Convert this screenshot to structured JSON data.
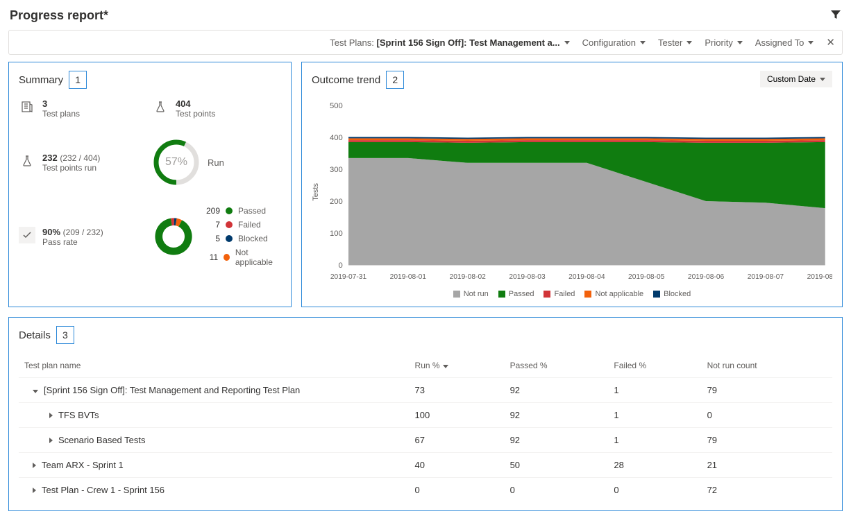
{
  "page_title": "Progress report*",
  "filter_bar": {
    "test_plans_label": "Test Plans:",
    "test_plans_value": "[Sprint 156 Sign Off]: Test Management a...",
    "items": [
      "Configuration",
      "Tester",
      "Priority",
      "Assigned To"
    ]
  },
  "summary": {
    "title": "Summary",
    "badge": "1",
    "test_plans": {
      "value": "3",
      "label": "Test plans"
    },
    "test_points": {
      "value": "404",
      "label": "Test points"
    },
    "test_points_run": {
      "value": "232",
      "sub": "(232 / 404)",
      "label": "Test points run"
    },
    "run_donut": {
      "pct_label": "57%",
      "pct": 57,
      "label": "Run",
      "fg": "#107c10",
      "bg": "#e1dfdd"
    },
    "pass_rate": {
      "value": "90%",
      "sub": "(209 / 232)",
      "label": "Pass rate"
    },
    "breakdown_donut": {
      "slices": [
        {
          "count": 209,
          "label": "Passed",
          "color": "#107c10"
        },
        {
          "count": 7,
          "label": "Failed",
          "color": "#d13438"
        },
        {
          "count": 5,
          "label": "Blocked",
          "color": "#003a6c"
        },
        {
          "count": 11,
          "label": "Not applicable",
          "color": "#f2610c"
        }
      ],
      "total": 232
    }
  },
  "trend": {
    "title": "Outcome trend",
    "badge": "2",
    "custom_date_label": "Custom Date",
    "y_label": "Tests",
    "y_ticks": [
      0,
      100,
      200,
      300,
      400,
      500
    ],
    "x_labels": [
      "2019-07-31",
      "2019-08-01",
      "2019-08-02",
      "2019-08-03",
      "2019-08-04",
      "2019-08-05",
      "2019-08-06",
      "2019-08-07",
      "2019-08-08"
    ],
    "series": [
      {
        "name": "Not run",
        "color": "#a6a6a6",
        "values": [
          335,
          335,
          320,
          320,
          320,
          260,
          200,
          195,
          178
        ]
      },
      {
        "name": "Passed",
        "color": "#107c10",
        "values": [
          50,
          50,
          63,
          65,
          65,
          125,
          183,
          188,
          207
        ]
      },
      {
        "name": "Failed",
        "color": "#d13438",
        "values": [
          6,
          6,
          6,
          6,
          6,
          6,
          6,
          6,
          6
        ]
      },
      {
        "name": "Not applicable",
        "color": "#f2610c",
        "values": [
          6,
          6,
          6,
          6,
          6,
          6,
          6,
          6,
          6
        ]
      },
      {
        "name": "Blocked",
        "color": "#003a6c",
        "values": [
          4,
          4,
          4,
          4,
          4,
          4,
          4,
          4,
          4
        ]
      }
    ],
    "y_max": 500
  },
  "details": {
    "title": "Details",
    "badge": "3",
    "columns": [
      "Test plan name",
      "Run %",
      "Passed %",
      "Failed %",
      "Not run count"
    ],
    "sort_col": 1,
    "rows": [
      {
        "level": 0,
        "expanded": true,
        "name": "[Sprint 156 Sign Off]: Test Management and Reporting Test Plan",
        "run": "73",
        "passed": "92",
        "failed": "1",
        "notrun": "79"
      },
      {
        "level": 1,
        "expanded": false,
        "name": "TFS BVTs",
        "run": "100",
        "passed": "92",
        "failed": "1",
        "notrun": "0"
      },
      {
        "level": 1,
        "expanded": false,
        "name": "Scenario Based Tests",
        "run": "67",
        "passed": "92",
        "failed": "1",
        "notrun": "79"
      },
      {
        "level": 0,
        "expanded": false,
        "name": "Team ARX - Sprint 1",
        "run": "40",
        "passed": "50",
        "failed": "28",
        "notrun": "21"
      },
      {
        "level": 0,
        "expanded": false,
        "name": "Test Plan - Crew 1 - Sprint 156",
        "run": "0",
        "passed": "0",
        "failed": "0",
        "notrun": "72"
      }
    ]
  },
  "colors": {
    "panel_border": "#2b88d8"
  }
}
